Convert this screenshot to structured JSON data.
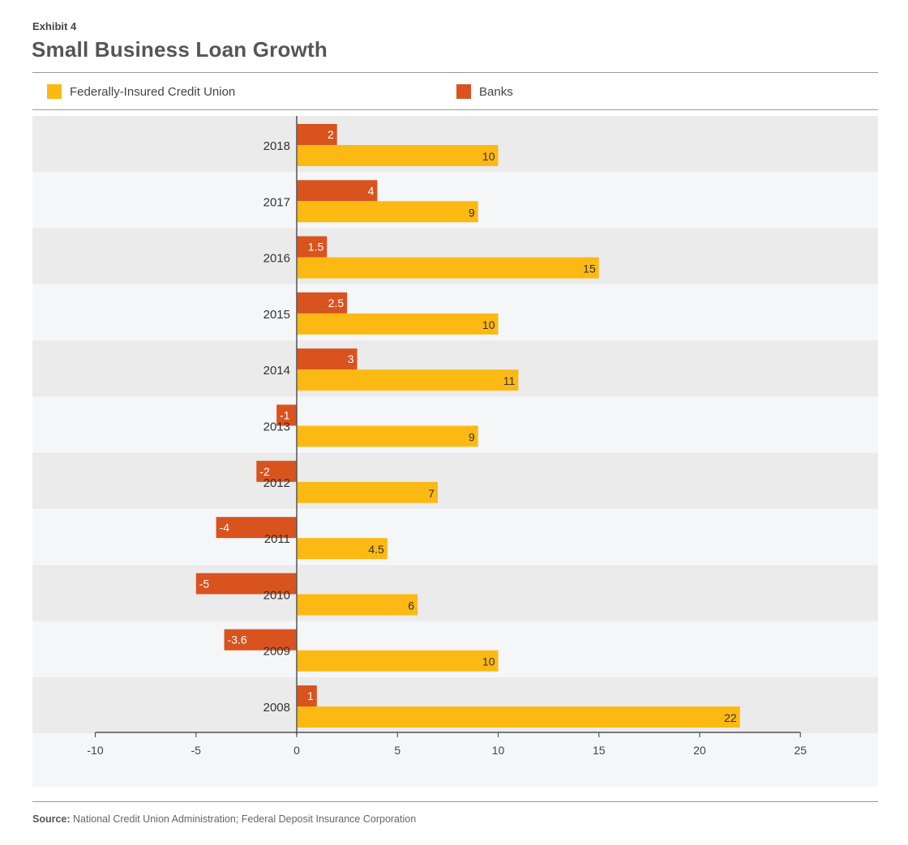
{
  "header": {
    "exhibit": "Exhibit 4",
    "title": "Small Business Loan Growth"
  },
  "legend": {
    "fcu_label": "Federally-Insured Credit Union",
    "banks_label": "Banks"
  },
  "colors": {
    "fcu": "#FDB913",
    "banks": "#D9531E",
    "band_dark": "#EBEBEB",
    "band_light": "#F5F6F8"
  },
  "footer": {
    "source_label": "Source:",
    "source_text": "National Credit Union Administration; Federal Deposit Insurance Corporation"
  },
  "chart_data": {
    "type": "bar",
    "orientation": "horizontal",
    "categories": [
      "2018",
      "2017",
      "2016",
      "2015",
      "2014",
      "2013",
      "2012",
      "2011",
      "2010",
      "2009",
      "2008"
    ],
    "series": [
      {
        "name": "Banks",
        "values": [
          2,
          4,
          1.5,
          2.5,
          3,
          -1,
          -2,
          -4,
          -5,
          -3.6,
          1
        ]
      },
      {
        "name": "Federally-Insured Credit Union",
        "values": [
          10,
          9,
          15,
          10,
          11,
          9,
          7,
          4.5,
          6,
          10,
          22
        ]
      }
    ],
    "xlim": [
      -10,
      25
    ],
    "xticks": [
      -10,
      -5,
      0,
      5,
      10,
      15,
      20,
      25
    ],
    "title": "Small Business Loan Growth",
    "xlabel": "",
    "ylabel": "",
    "legend_position": "top",
    "data_labels": true,
    "grid": false
  }
}
